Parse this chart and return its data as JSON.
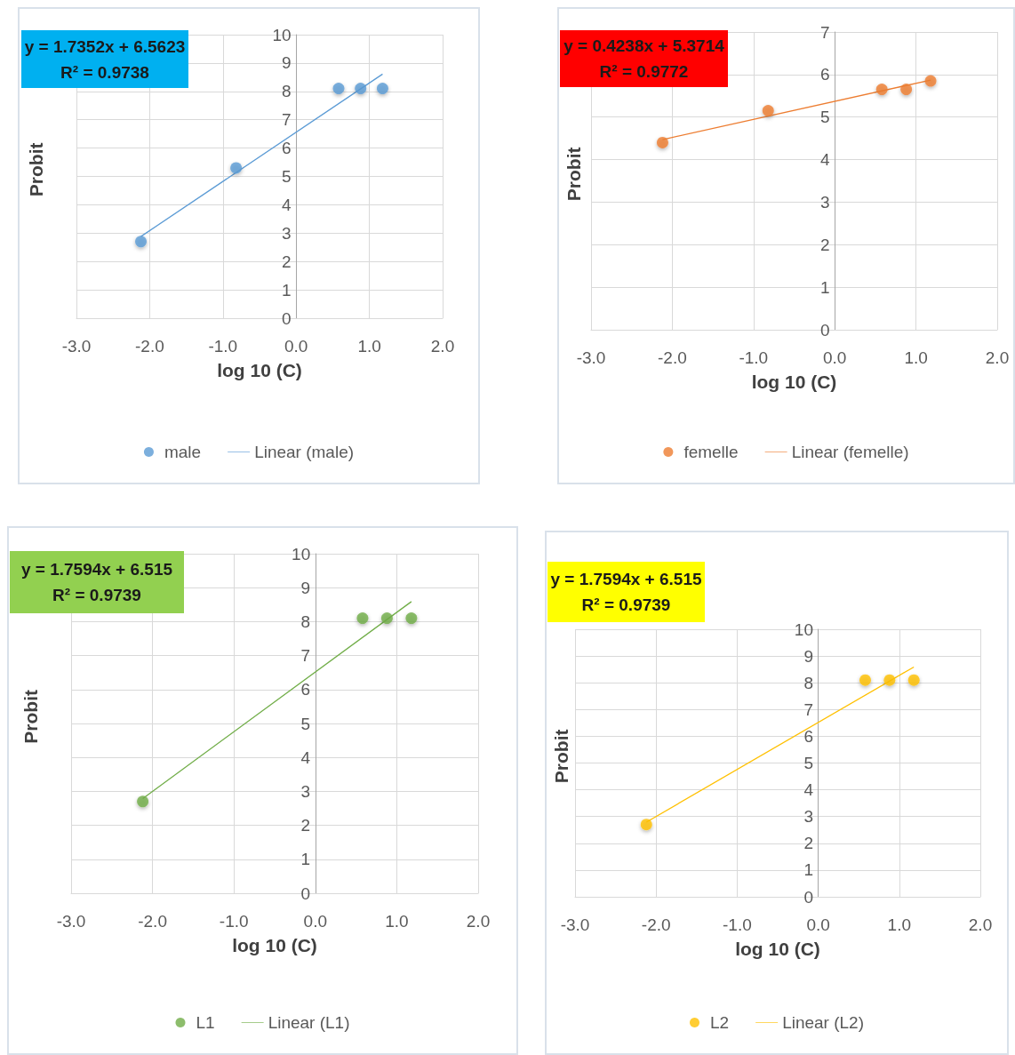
{
  "chart_data": [
    {
      "type": "scatter",
      "xlabel": "log 10 (C)",
      "ylabel": "Probit",
      "annotations": [
        "y = 1.7352x + 6.5623",
        "R² = 0.9738"
      ],
      "xlim": [
        -3,
        2
      ],
      "xticks": [
        {
          "value": -3,
          "label": "-3.0"
        },
        {
          "value": -2,
          "label": "-2.0"
        },
        {
          "value": -1,
          "label": "-1.0"
        },
        {
          "value": 0,
          "label": "0.0"
        },
        {
          "value": 1,
          "label": "1.0"
        },
        {
          "value": 2,
          "label": "2.0"
        }
      ],
      "ylim": [
        0,
        10
      ],
      "yticks": [
        0,
        1,
        2,
        3,
        4,
        5,
        6,
        7,
        8,
        9,
        10
      ],
      "grid": true,
      "legend": "bottom",
      "series": [
        {
          "name": "male",
          "marker": "circle",
          "color": "#5b9bd5",
          "x": [
            -2.12,
            -0.82,
            0.58,
            0.88,
            1.18
          ],
          "values": [
            2.7,
            5.3,
            8.1,
            8.1,
            8.1
          ]
        },
        {
          "name": "Linear (male)",
          "type": "line",
          "marker": "none",
          "line_style": "solid",
          "color": "#5b9bd5",
          "x": [
            -2.12,
            1.18
          ],
          "values": [
            2.88,
            8.61
          ]
        }
      ]
    },
    {
      "type": "scatter",
      "xlabel": "log 10 (C)",
      "ylabel": "Probit",
      "annotations": [
        "y = 0.4238x + 5.3714",
        "R² = 0.9772"
      ],
      "xlim": [
        -3,
        2
      ],
      "xticks": [
        {
          "value": -3,
          "label": "-3.0"
        },
        {
          "value": -2,
          "label": "-2.0"
        },
        {
          "value": -1,
          "label": "-1.0"
        },
        {
          "value": 0,
          "label": "0.0"
        },
        {
          "value": 1,
          "label": "1.0"
        },
        {
          "value": 2,
          "label": "2.0"
        }
      ],
      "ylim": [
        0,
        7
      ],
      "yticks": [
        0,
        1,
        2,
        3,
        4,
        5,
        6,
        7
      ],
      "grid": true,
      "legend": "bottom",
      "series": [
        {
          "name": "femelle",
          "marker": "circle",
          "color": "#ed7d31",
          "x": [
            -2.12,
            -0.82,
            0.58,
            0.88,
            1.18
          ],
          "values": [
            4.4,
            5.15,
            5.65,
            5.65,
            5.85
          ]
        },
        {
          "name": "Linear (femelle)",
          "type": "line",
          "marker": "none",
          "line_style": "solid",
          "color": "#ed7d31",
          "x": [
            -2.12,
            1.18
          ],
          "values": [
            4.47,
            5.87
          ]
        }
      ]
    },
    {
      "type": "scatter",
      "xlabel": "log 10 (C)",
      "ylabel": "Probit",
      "annotations": [
        "y = 1.7594x + 6.515",
        "R² = 0.9739"
      ],
      "xlim": [
        -3,
        2
      ],
      "xticks": [
        {
          "value": -3,
          "label": "-3.0"
        },
        {
          "value": -2,
          "label": "-2.0"
        },
        {
          "value": -1,
          "label": "-1.0"
        },
        {
          "value": 0,
          "label": "0.0"
        },
        {
          "value": 1,
          "label": "1.0"
        },
        {
          "value": 2,
          "label": "2.0"
        }
      ],
      "ylim": [
        0,
        10
      ],
      "yticks": [
        0,
        1,
        2,
        3,
        4,
        5,
        6,
        7,
        8,
        9,
        10
      ],
      "grid": true,
      "legend": "bottom",
      "series": [
        {
          "name": "L1",
          "marker": "circle",
          "color": "#70ad47",
          "x": [
            -2.12,
            0.58,
            0.88,
            1.18
          ],
          "values": [
            2.7,
            8.1,
            8.1,
            8.1
          ]
        },
        {
          "name": "Linear (L1)",
          "type": "line",
          "marker": "none",
          "line_style": "solid",
          "color": "#70ad47",
          "x": [
            -2.12,
            1.18
          ],
          "values": [
            2.79,
            8.59
          ]
        }
      ]
    },
    {
      "type": "scatter",
      "xlabel": "log 10 (C)",
      "ylabel": "Probit",
      "annotations": [
        "y = 1.7594x + 6.515",
        "R² = 0.9739"
      ],
      "xlim": [
        -3,
        2
      ],
      "xticks": [
        {
          "value": -3,
          "label": "-3.0"
        },
        {
          "value": -2,
          "label": "-2.0"
        },
        {
          "value": -1,
          "label": "-1.0"
        },
        {
          "value": 0,
          "label": "0.0"
        },
        {
          "value": 1,
          "label": "1.0"
        },
        {
          "value": 2,
          "label": "2.0"
        }
      ],
      "ylim": [
        0,
        10
      ],
      "yticks": [
        0,
        1,
        2,
        3,
        4,
        5,
        6,
        7,
        8,
        9,
        10
      ],
      "grid": true,
      "legend": "bottom",
      "series": [
        {
          "name": "L2",
          "marker": "circle",
          "color": "#ffc000",
          "x": [
            -2.12,
            0.58,
            0.88,
            1.18
          ],
          "values": [
            2.7,
            8.1,
            8.1,
            8.1
          ]
        },
        {
          "name": "Linear (L2)",
          "type": "line",
          "marker": "none",
          "line_style": "solid",
          "color": "#ffc000",
          "x": [
            -2.12,
            1.18
          ],
          "values": [
            2.79,
            8.59
          ]
        }
      ]
    }
  ]
}
